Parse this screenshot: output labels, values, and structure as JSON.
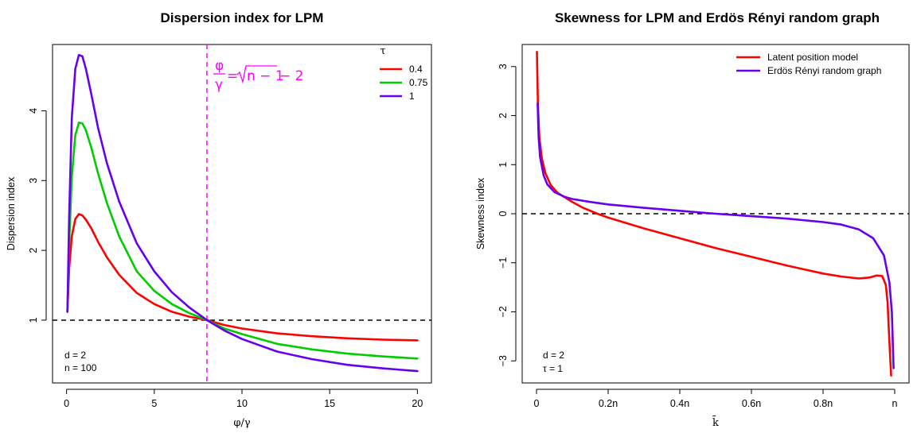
{
  "chart_data": [
    {
      "type": "line",
      "title": "Dispersion index for LPM",
      "xlabel": "φ/γ",
      "ylabel": "Dispersion index",
      "xlim": [
        -0.8,
        20.8
      ],
      "ylim": [
        0.1,
        4.95
      ],
      "xticks": [
        0,
        5,
        10,
        15,
        20
      ],
      "xtick_labels": [
        "0",
        "5",
        "10",
        "15",
        "20"
      ],
      "yticks": [
        1,
        2,
        3,
        4
      ],
      "ytick_labels": [
        "1",
        "2",
        "3",
        "4"
      ],
      "hline": {
        "y": 1,
        "style": "dashed",
        "color": "#000000"
      },
      "vline": {
        "x": 8,
        "style": "dashed",
        "color": "#ff00ff"
      },
      "formula": {
        "num": "φ",
        "den": "γ",
        "eq": "=",
        "radicand": "n − 1",
        "tail": "− 2",
        "color": "#ff00ff"
      },
      "legend": {
        "title": "τ",
        "position": "top-right"
      },
      "annotations": [
        "d = 2",
        "n = 100"
      ],
      "series": [
        {
          "name": "0.4",
          "color": "#ff0000",
          "x": [
            0.05,
            0.15,
            0.3,
            0.5,
            0.7,
            0.9,
            1.1,
            1.4,
            1.8,
            2.3,
            3,
            4,
            5,
            6,
            7,
            8,
            9,
            10,
            12,
            14,
            16,
            18,
            20
          ],
          "y": [
            1.12,
            1.75,
            2.2,
            2.45,
            2.52,
            2.5,
            2.44,
            2.32,
            2.12,
            1.9,
            1.65,
            1.39,
            1.23,
            1.12,
            1.05,
            1.0,
            0.93,
            0.88,
            0.81,
            0.77,
            0.74,
            0.72,
            0.71
          ]
        },
        {
          "name": "0.75",
          "color": "#00cc00",
          "x": [
            0.05,
            0.15,
            0.3,
            0.5,
            0.7,
            0.9,
            1.1,
            1.4,
            1.8,
            2.3,
            3,
            4,
            5,
            6,
            7,
            8,
            9,
            10,
            12,
            14,
            16,
            18,
            20
          ],
          "y": [
            1.12,
            2.1,
            3.05,
            3.65,
            3.83,
            3.82,
            3.72,
            3.48,
            3.1,
            2.68,
            2.2,
            1.7,
            1.42,
            1.23,
            1.1,
            1.0,
            0.88,
            0.8,
            0.66,
            0.58,
            0.52,
            0.48,
            0.45
          ]
        },
        {
          "name": "1",
          "color": "#6600ee",
          "x": [
            0.05,
            0.15,
            0.3,
            0.5,
            0.7,
            0.9,
            1.1,
            1.4,
            1.8,
            2.3,
            3,
            4,
            5,
            6,
            7,
            8,
            9,
            10,
            12,
            14,
            16,
            18,
            20
          ],
          "y": [
            1.12,
            2.5,
            3.9,
            4.6,
            4.8,
            4.78,
            4.6,
            4.25,
            3.75,
            3.25,
            2.7,
            2.1,
            1.7,
            1.4,
            1.18,
            1.0,
            0.85,
            0.73,
            0.55,
            0.44,
            0.36,
            0.31,
            0.27
          ]
        }
      ]
    },
    {
      "type": "line",
      "title": "Skewness for LPM and Erdös Rényi random graph",
      "xlabel": "k̄",
      "ylabel": "Skewness index",
      "xlim": [
        -0.04,
        1.04
      ],
      "ylim": [
        -3.45,
        3.45
      ],
      "xticks": [
        0,
        0.2,
        0.4,
        0.6,
        0.8,
        1
      ],
      "xtick_labels": [
        "0",
        "0.2n",
        "0.4n",
        "0.6n",
        "0.8n",
        "n"
      ],
      "yticks": [
        -3,
        -2,
        -1,
        0,
        1,
        2,
        3
      ],
      "ytick_labels": [
        "−3",
        "−2",
        "−1",
        "0",
        "1",
        "2",
        "3"
      ],
      "hline": {
        "y": 0,
        "style": "dashed",
        "color": "#000000"
      },
      "legend": {
        "position": "top-right"
      },
      "annotations": [
        "d = 2",
        "τ = 1"
      ],
      "series": [
        {
          "name": "Latent position model",
          "color": "#ff0000",
          "x": [
            0.001,
            0.004,
            0.008,
            0.015,
            0.025,
            0.04,
            0.06,
            0.08,
            0.1,
            0.13,
            0.17,
            0.2,
            0.3,
            0.4,
            0.5,
            0.6,
            0.7,
            0.8,
            0.85,
            0.9,
            0.93,
            0.95,
            0.965,
            0.975,
            0.98,
            0.985,
            0.99
          ],
          "y": [
            3.3,
            2.2,
            1.55,
            1.12,
            0.82,
            0.58,
            0.42,
            0.33,
            0.24,
            0.12,
            0.0,
            -0.08,
            -0.3,
            -0.5,
            -0.7,
            -0.88,
            -1.06,
            -1.22,
            -1.28,
            -1.32,
            -1.3,
            -1.26,
            -1.27,
            -1.45,
            -1.8,
            -2.6,
            -3.3
          ]
        },
        {
          "name": "Erdös Rényi random graph",
          "color": "#6600ee",
          "x": [
            0.003,
            0.006,
            0.01,
            0.02,
            0.03,
            0.05,
            0.08,
            0.1,
            0.15,
            0.2,
            0.3,
            0.4,
            0.5,
            0.6,
            0.7,
            0.8,
            0.85,
            0.9,
            0.94,
            0.97,
            0.985,
            0.992,
            0.997
          ],
          "y": [
            2.25,
            1.55,
            1.15,
            0.78,
            0.6,
            0.44,
            0.34,
            0.3,
            0.24,
            0.19,
            0.12,
            0.06,
            0.0,
            -0.05,
            -0.1,
            -0.17,
            -0.22,
            -0.32,
            -0.5,
            -0.85,
            -1.4,
            -2.0,
            -3.15
          ]
        }
      ]
    }
  ]
}
